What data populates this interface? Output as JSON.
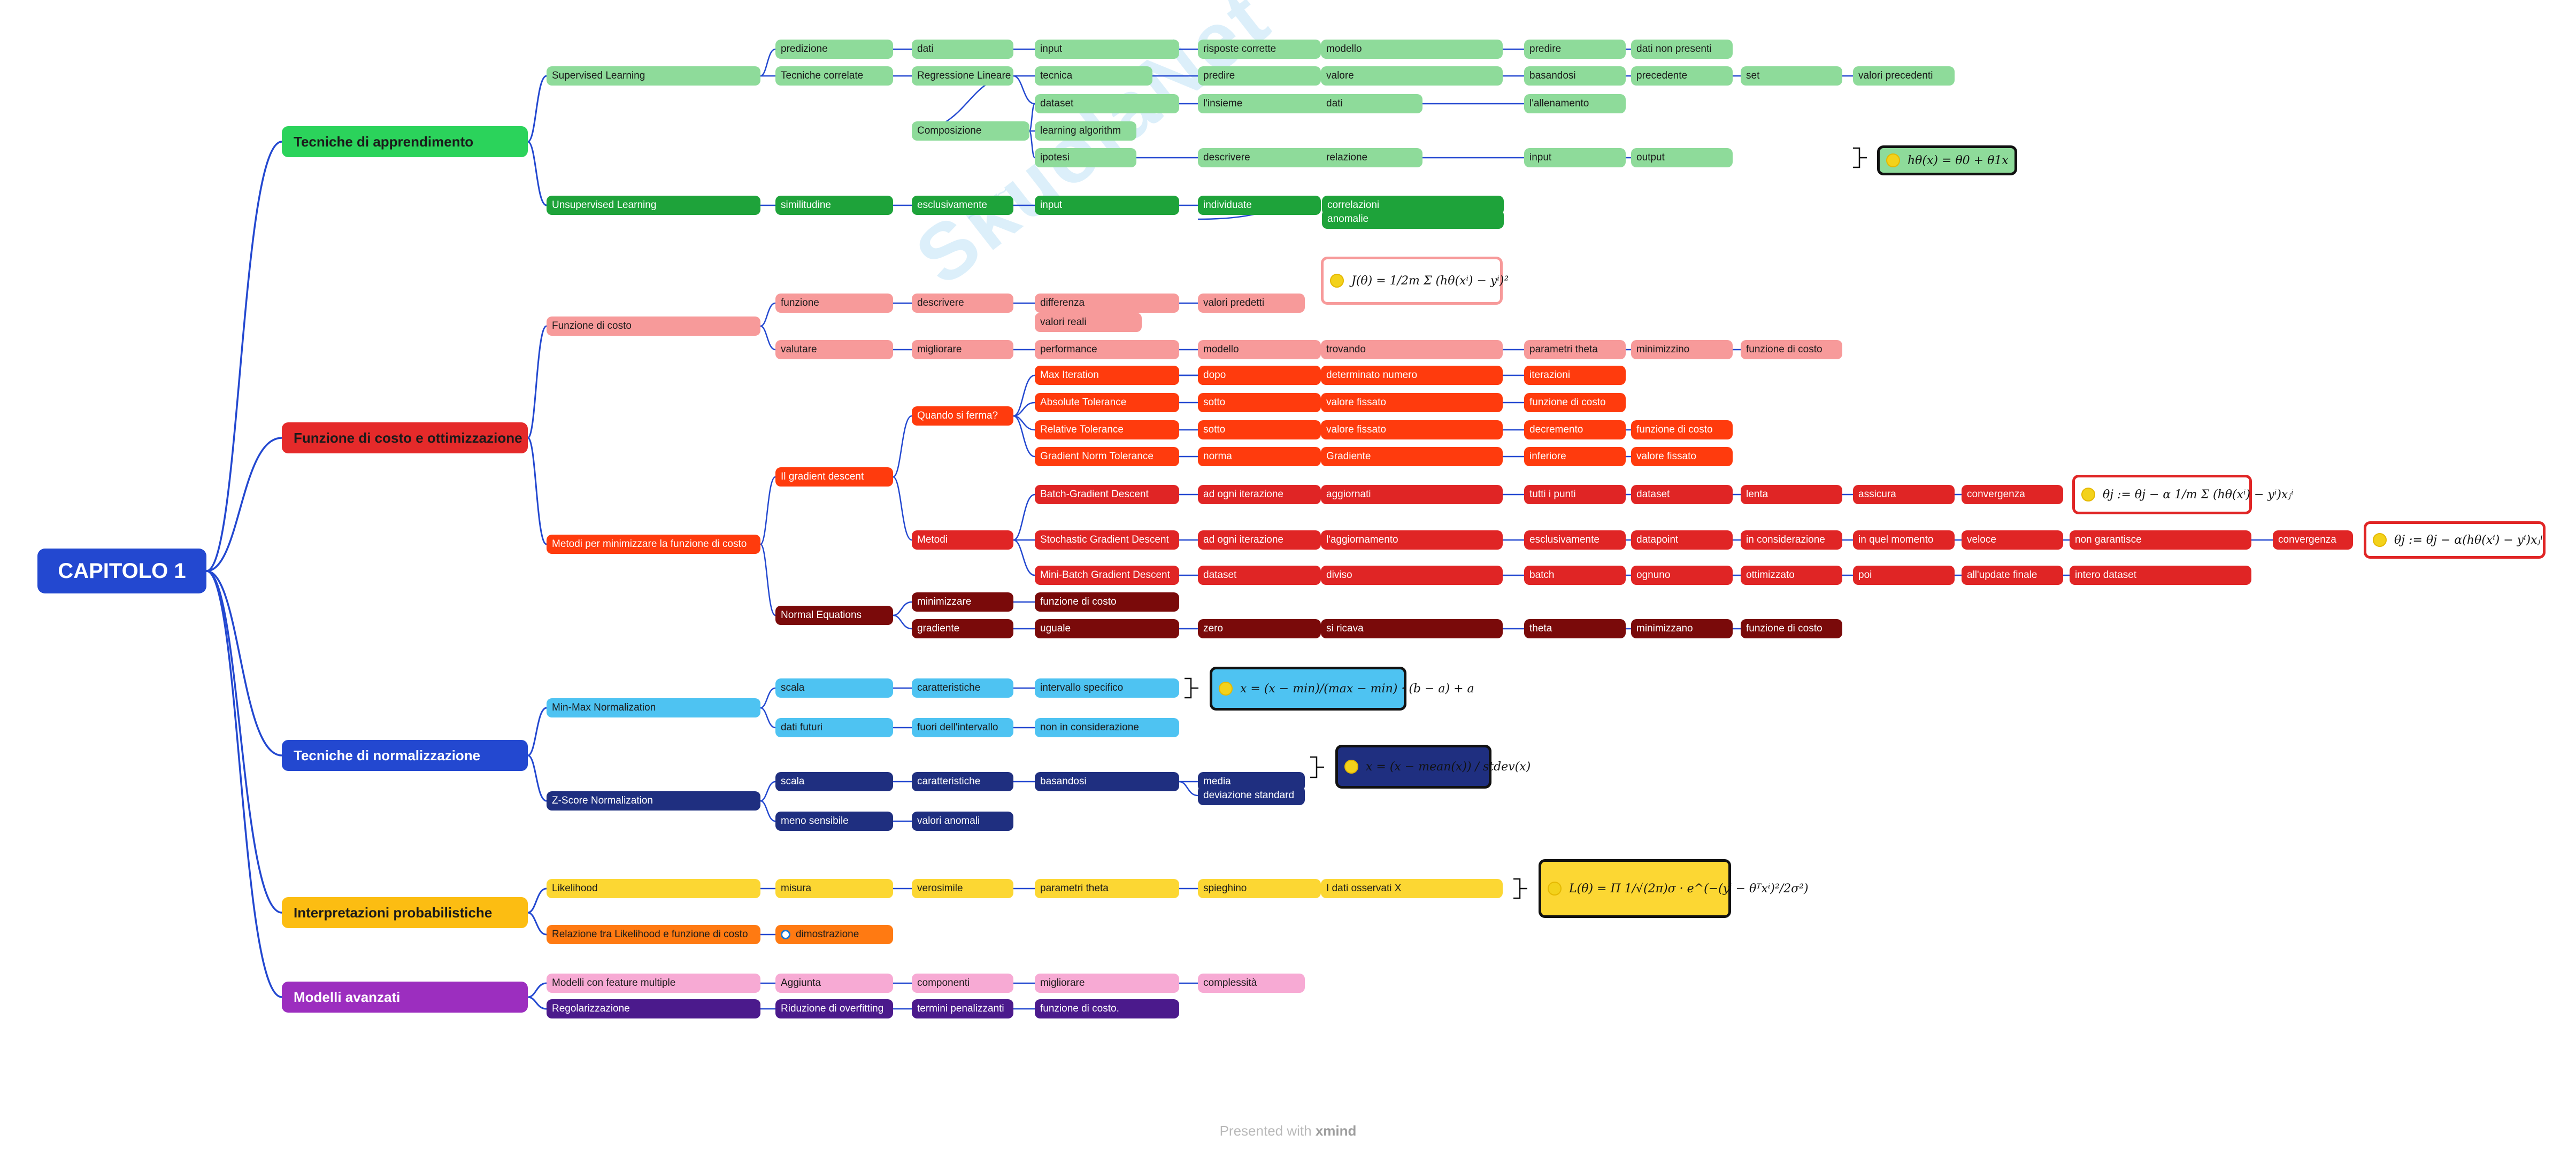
{
  "diagram": {
    "root": "CAPITOLO 1",
    "watermark": "SkuolaNet",
    "footer": {
      "prefix": "Presented with",
      "brand": "xmind"
    },
    "branches": [
      {
        "title": "Tecniche di apprendimento",
        "children": [
          {
            "label": "Supervised Learning",
            "rows": [
              [
                "predizione",
                "dati",
                "input",
                "risposte corrette",
                "modello",
                "predire",
                "dati non presenti"
              ],
              [
                "Tecniche correlate",
                "Regressione Lineare",
                "tecnica",
                "predire",
                "valore",
                "basandosi",
                "precedente",
                "set",
                "valori precedenti"
              ],
              [
                "dataset",
                "l'insieme",
                "dati",
                "l'allenamento"
              ],
              [
                "Composizione",
                "learning algorithm"
              ],
              [
                "ipotesi",
                "descrivere",
                "relazione",
                "input",
                "output"
              ]
            ],
            "formula": "hθ(x) = θ0 + θ1x"
          },
          {
            "label": "Unsupervised Learning",
            "rows": [
              [
                "similitudine",
                "esclusivamente",
                "input",
                "individuate",
                "correlazioni"
              ],
              [
                "anomalie"
              ]
            ]
          }
        ]
      },
      {
        "title": "Funzione di costo e ottimizzazione",
        "children": [
          {
            "label": "Funzione di costo",
            "rows": [
              [
                "funzione",
                "descrivere",
                "differenza",
                "valori predetti"
              ],
              [
                "valori reali"
              ],
              [
                "valutare",
                "migliorare",
                "performance",
                "modello",
                "trovando",
                "parametri theta",
                "minimizzino",
                "funzione di costo"
              ]
            ],
            "formula": "J(θ) = 1/2m Σ (hθ(xⁱ) − yⁱ)²"
          },
          {
            "label": "Metodi per minimizzare la funzione di costo",
            "rows": [
              [
                "Il gradient descent",
                "Quando si ferma?",
                "Max Iteration",
                "dopo",
                "determinato numero",
                "iterazioni"
              ],
              [
                "Absolute Tolerance",
                "sotto",
                "valore fissato",
                "funzione di costo"
              ],
              [
                "Relative Tolerance",
                "sotto",
                "valore fissato",
                "decremento",
                "funzione di costo"
              ],
              [
                "Gradient Norm Tolerance",
                "norma",
                "Gradiente",
                "inferiore",
                "valore fissato"
              ],
              [
                "Metodi",
                "Batch-Gradient Descent",
                "ad ogni iterazione",
                "aggiornati",
                "tutti i punti",
                "dataset",
                "lenta",
                "assicura",
                "convergenza"
              ],
              [
                "Stochastic Gradient Descent",
                "ad ogni iterazione",
                "l'aggiornamento",
                "esclusivamente",
                "datapoint",
                "in considerazione",
                "in quel momento",
                "veloce",
                "non garantisce",
                "convergenza"
              ],
              [
                "Mini-Batch Gradient Descent",
                "dataset",
                "diviso",
                "batch",
                "ognuno",
                "ottimizzato",
                "poi",
                "all'update finale",
                "intero dataset"
              ],
              [
                "Normal Equations",
                "minimizzare",
                "funzione di costo"
              ],
              [
                "gradiente",
                "uguale",
                "zero",
                "si ricava",
                "theta",
                "minimizzano",
                "funzione di costo"
              ]
            ],
            "formula_batch": "θj := θj − α 1/m Σ (hθ(xⁱ) − yⁱ)xⱼⁱ",
            "formula_sgd": "θj := θj − α(hθ(xⁱ) − yⁱ)xⱼⁱ"
          }
        ]
      },
      {
        "title": "Tecniche di normalizzazione",
        "children": [
          {
            "label": "Min-Max Normalization",
            "rows": [
              [
                "scala",
                "caratteristiche",
                "intervallo specifico"
              ],
              [
                "dati futuri",
                "fuori dell'intervallo",
                "non in considerazione"
              ]
            ],
            "formula": "x = (x − min)/(max − min) · (b − a) + a"
          },
          {
            "label": "Z-Score Normalization",
            "rows": [
              [
                "scala",
                "caratteristiche",
                "basandosi",
                "media"
              ],
              [
                "deviazione standard"
              ],
              [
                "meno sensibile",
                "valori anomali"
              ]
            ],
            "formula": "x = (x − mean(x)) / stdev(x)"
          }
        ]
      },
      {
        "title": "Interpretazioni probabilistiche",
        "children": [
          {
            "label": "Likelihood",
            "rows": [
              [
                "misura",
                "verosimile",
                "parametri theta",
                "spieghino",
                "I dati osservati X"
              ]
            ],
            "formula": "L(θ) = Π 1/√(2π)σ · e^(−(yⁱ − θᵀxⁱ)²/2σ²)"
          },
          {
            "label": "Relazione tra Likelihood e funzione di costo",
            "rows": [
              [
                "dimostrazione"
              ]
            ]
          }
        ]
      },
      {
        "title": "Modelli avanzati",
        "children": [
          {
            "label": "Modelli con feature multiple",
            "rows": [
              [
                "Aggiunta",
                "componenti",
                "migliorare",
                "complessità"
              ]
            ]
          },
          {
            "label": "Regolarizzazione",
            "rows": [
              [
                "Riduzione di overfitting",
                "termini penalizzanti",
                "funzione di costo."
              ]
            ]
          }
        ]
      }
    ]
  }
}
